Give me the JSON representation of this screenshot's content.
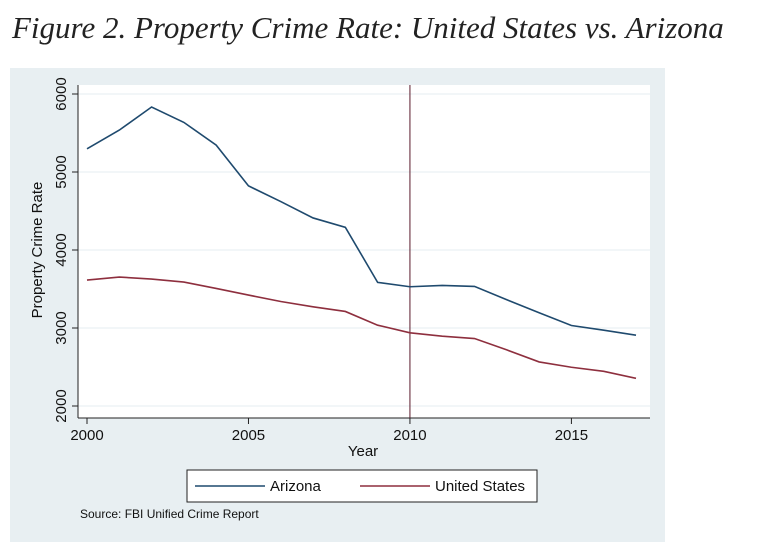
{
  "chart_data": {
    "type": "line",
    "title": "Figure 2. Property Crime Rate: United States vs. Arizona",
    "xlabel": "Year",
    "ylabel": "Property Crime Rate",
    "xlim": [
      2000,
      2017
    ],
    "ylim": [
      2000,
      6000
    ],
    "xticks": [
      2000,
      2005,
      2010,
      2015
    ],
    "yticks": [
      2000,
      3000,
      4000,
      5000,
      6000
    ],
    "grid": true,
    "vertical_line": 2010,
    "legend_position": "bottom",
    "x": [
      2000,
      2001,
      2002,
      2003,
      2004,
      2005,
      2006,
      2007,
      2008,
      2009,
      2010,
      2011,
      2012,
      2013,
      2014,
      2015,
      2016,
      2017
    ],
    "series": [
      {
        "name": "Arizona",
        "color": "#1f4a6e",
        "values": [
          5298,
          5537,
          5833,
          5636,
          5345,
          4822,
          4621,
          4411,
          4291,
          3585,
          3529,
          3546,
          3533,
          3362,
          3195,
          3032,
          2972,
          2908
        ]
      },
      {
        "name": "United States",
        "color": "#8e2f3e",
        "values": [
          3615,
          3653,
          3627,
          3589,
          3507,
          3422,
          3340,
          3272,
          3212,
          3036,
          2938,
          2895,
          2865,
          2719,
          2565,
          2497,
          2445,
          2355
        ]
      }
    ],
    "note": "Source: FBI Unified Crime Report"
  }
}
